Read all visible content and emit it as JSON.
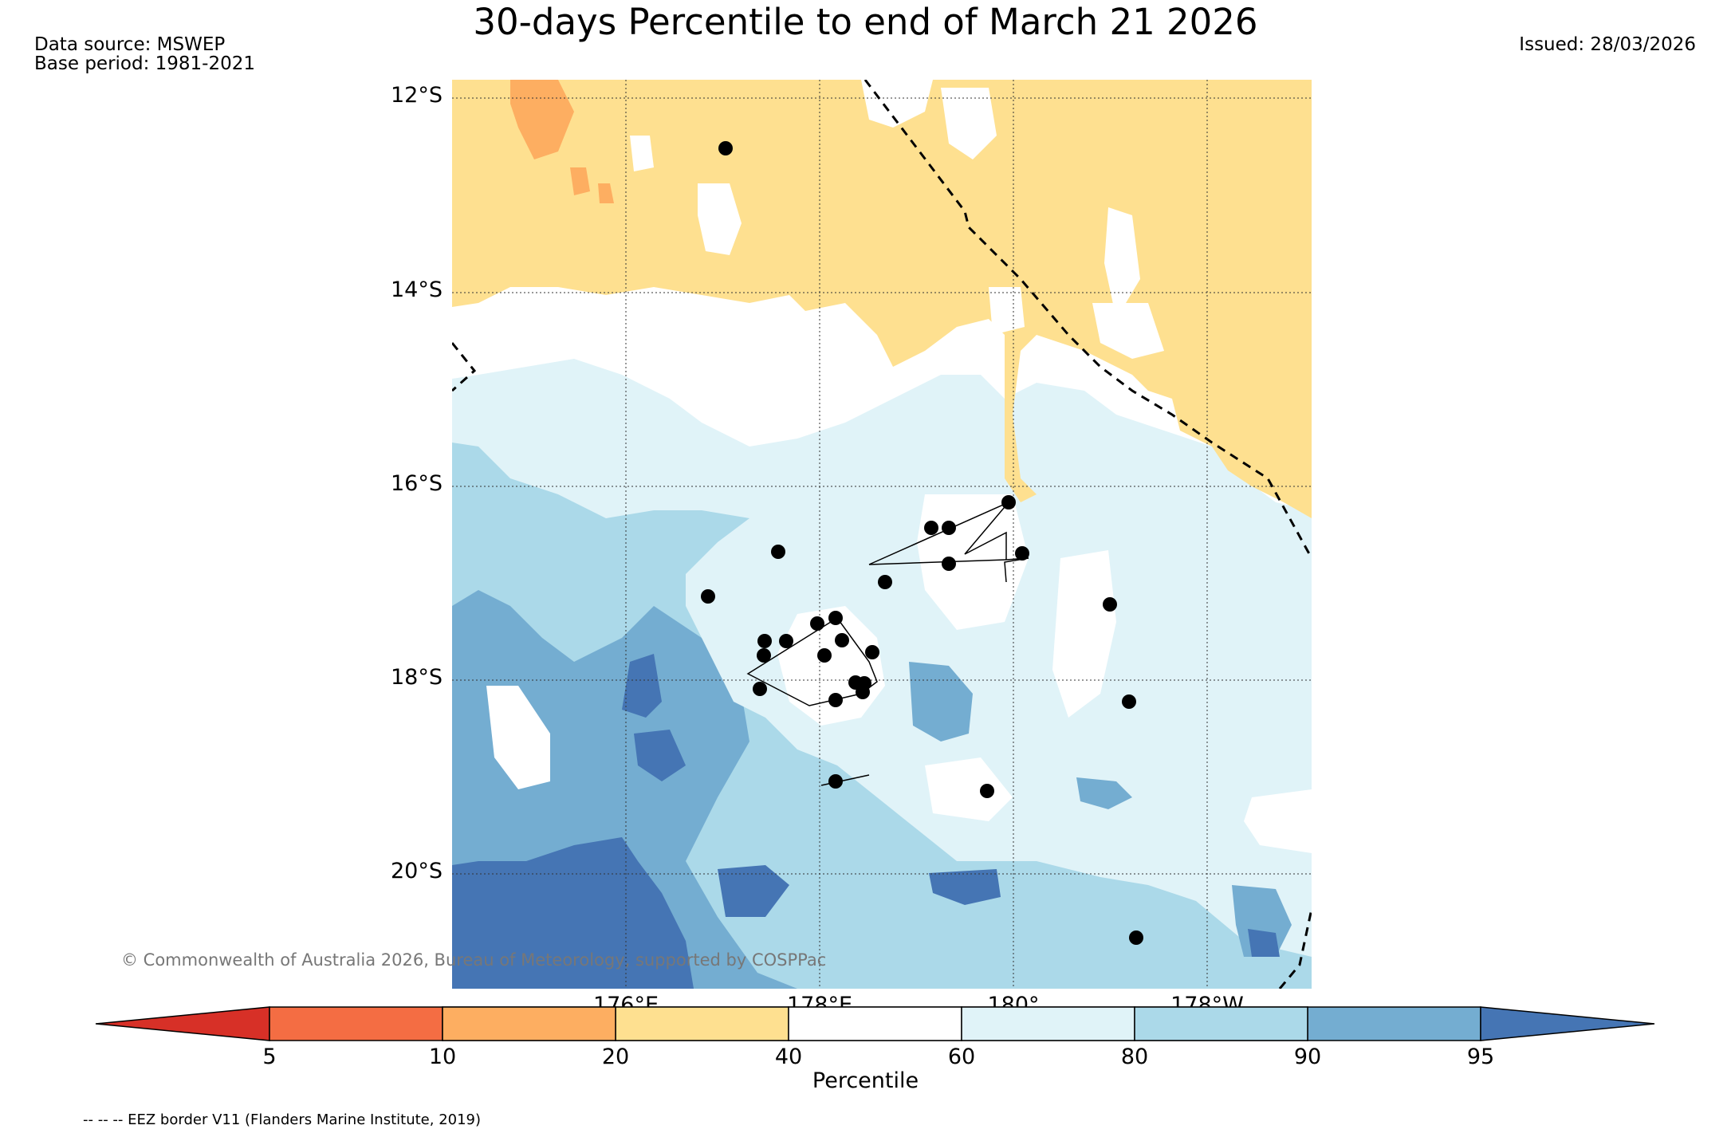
{
  "title": "30-days Percentile to end of March 21 2026",
  "data_source": "Data source: MSWEP",
  "base_period": "Base period: 1981-2021",
  "issued": "Issued: 28/03/2026",
  "latitudes": [
    "12°S",
    "14°S",
    "16°S",
    "18°S",
    "20°S"
  ],
  "longitudes": [
    "176°E",
    "178°E",
    "180°",
    "178°W"
  ],
  "copyright": "© Commonwealth of Australia 2026, Bureau of Meteorology, supported by COSPPac",
  "colorbar": {
    "label": "Percentile",
    "ticks": [
      "5",
      "10",
      "20",
      "40",
      "60",
      "80",
      "90",
      "95"
    ],
    "colors": [
      "#d73027",
      "#f46d43",
      "#fdae61",
      "#fee090",
      "#ffffff",
      "#e0f3f8",
      "#abd9e9",
      "#74add1",
      "#4575b4"
    ]
  },
  "eez_note": "-- -- -- EEZ border V11 (Flanders Marine Institute, 2019)"
}
